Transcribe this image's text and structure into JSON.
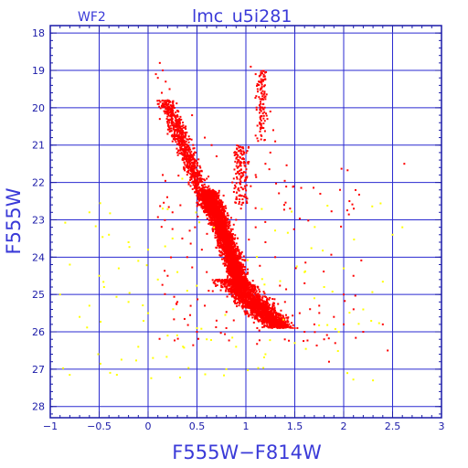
{
  "chart_data": {
    "type": "scatter",
    "title": "lmc_u5i281",
    "panel_label": "WF2",
    "xlabel": "F555W−F814W",
    "ylabel": "F555W",
    "xlim": [
      -1,
      3
    ],
    "ylim": [
      28.3,
      17.8
    ],
    "y_inverted": true,
    "x_ticks": [
      -1,
      -0.5,
      0,
      0.5,
      1,
      1.5,
      2,
      2.5,
      3
    ],
    "x_tick_labels": [
      "−1",
      "−0.5",
      "0",
      "0.5",
      "1",
      "1.5",
      "2",
      "2.5",
      "3"
    ],
    "y_ticks": [
      18,
      19,
      20,
      21,
      22,
      23,
      24,
      25,
      26,
      27,
      28
    ],
    "y_tick_labels": [
      "18",
      "19",
      "20",
      "21",
      "22",
      "23",
      "24",
      "25",
      "26",
      "27",
      "28"
    ],
    "grid": true,
    "legend": "none",
    "series": [
      {
        "color": "#ff0000",
        "points": [
          [
            0.12,
            18.8
          ],
          [
            0.15,
            19.0
          ],
          [
            0.1,
            19.2
          ],
          [
            0.18,
            19.3
          ],
          [
            0.08,
            19.1
          ],
          [
            0.22,
            19.5
          ],
          [
            0.14,
            19.6
          ],
          [
            0.2,
            19.8
          ],
          [
            0.1,
            19.9
          ],
          [
            0.25,
            20.0
          ],
          [
            0.18,
            20.1
          ],
          [
            0.3,
            20.2
          ],
          [
            0.12,
            20.3
          ],
          [
            0.22,
            20.4
          ],
          [
            0.35,
            20.5
          ],
          [
            0.28,
            20.6
          ],
          [
            0.2,
            20.7
          ],
          [
            0.38,
            20.8
          ],
          [
            0.25,
            20.9
          ],
          [
            0.32,
            21.0
          ],
          [
            0.42,
            21.1
          ],
          [
            0.3,
            21.2
          ],
          [
            0.45,
            21.3
          ],
          [
            0.36,
            21.4
          ],
          [
            0.5,
            21.5
          ],
          [
            0.4,
            21.6
          ],
          [
            0.55,
            21.7
          ],
          [
            0.48,
            21.8
          ],
          [
            0.6,
            21.9
          ],
          [
            0.52,
            22.0
          ],
          [
            0.62,
            22.1
          ],
          [
            0.56,
            22.2
          ],
          [
            0.68,
            22.3
          ],
          [
            0.6,
            22.4
          ],
          [
            0.7,
            22.5
          ],
          [
            0.65,
            22.6
          ],
          [
            0.72,
            22.7
          ],
          [
            0.68,
            22.8
          ],
          [
            0.75,
            22.9
          ],
          [
            0.7,
            23.0
          ],
          [
            0.78,
            23.1
          ],
          [
            0.72,
            23.2
          ],
          [
            0.8,
            23.3
          ],
          [
            0.75,
            23.4
          ],
          [
            0.82,
            23.5
          ],
          [
            0.78,
            23.6
          ],
          [
            0.85,
            23.7
          ],
          [
            0.8,
            23.8
          ],
          [
            0.88,
            23.9
          ],
          [
            0.82,
            24.0
          ],
          [
            0.9,
            24.1
          ],
          [
            0.85,
            24.2
          ],
          [
            0.92,
            24.3
          ],
          [
            0.88,
            24.4
          ],
          [
            0.95,
            24.5
          ],
          [
            0.9,
            24.6
          ],
          [
            1.0,
            24.7
          ],
          [
            0.95,
            24.8
          ],
          [
            1.05,
            24.9
          ],
          [
            1.0,
            25.0
          ],
          [
            1.1,
            25.1
          ],
          [
            1.05,
            25.2
          ],
          [
            1.15,
            25.3
          ],
          [
            1.2,
            25.4
          ],
          [
            1.25,
            25.5
          ],
          [
            1.3,
            25.6
          ],
          [
            1.35,
            25.7
          ],
          [
            1.4,
            25.8
          ],
          [
            1.5,
            25.9
          ],
          [
            1.6,
            26.0
          ],
          [
            1.7,
            25.8
          ],
          [
            1.8,
            26.2
          ],
          [
            1.05,
            18.9
          ],
          [
            1.1,
            19.1
          ],
          [
            1.15,
            19.3
          ],
          [
            1.12,
            19.5
          ],
          [
            1.2,
            19.7
          ],
          [
            1.18,
            19.9
          ],
          [
            1.25,
            20.1
          ],
          [
            1.22,
            20.3
          ],
          [
            1.28,
            20.6
          ],
          [
            1.3,
            20.9
          ],
          [
            1.25,
            21.2
          ],
          [
            1.2,
            21.5
          ],
          [
            1.1,
            21.8
          ],
          [
            1.05,
            22.1
          ],
          [
            1.0,
            22.4
          ],
          [
            0.95,
            22.7
          ],
          [
            0.9,
            23.0
          ],
          [
            0.85,
            23.3
          ],
          [
            0.65,
            21.0
          ],
          [
            0.7,
            21.3
          ],
          [
            0.58,
            20.8
          ],
          [
            0.45,
            20.2
          ],
          [
            0.52,
            22.6
          ],
          [
            0.48,
            23.2
          ],
          [
            0.55,
            23.8
          ],
          [
            0.6,
            24.4
          ],
          [
            0.62,
            24.9
          ],
          [
            0.58,
            25.3
          ],
          [
            0.7,
            25.7
          ],
          [
            0.8,
            25.9
          ],
          [
            1.4,
            25.2
          ],
          [
            1.55,
            25.5
          ],
          [
            1.75,
            25.3
          ],
          [
            1.9,
            25.6
          ],
          [
            2.0,
            25.0
          ],
          [
            2.2,
            26.0
          ],
          [
            2.45,
            26.5
          ],
          [
            2.62,
            21.5
          ],
          [
            2.0,
            25.8
          ],
          [
            1.85,
            26.8
          ],
          [
            2.4,
            25.8
          ],
          [
            2.1,
            24.5
          ],
          [
            1.6,
            24.7
          ],
          [
            1.3,
            24.0
          ],
          [
            1.2,
            23.6
          ],
          [
            1.1,
            23.2
          ],
          [
            0.3,
            25.2
          ],
          [
            0.4,
            24.0
          ],
          [
            0.2,
            24.5
          ],
          [
            0.35,
            23.5
          ],
          [
            0.25,
            22.8
          ],
          [
            0.45,
            22.0
          ],
          [
            0.15,
            21.8
          ],
          [
            0.5,
            26.0
          ]
        ]
      },
      {
        "color": "#ffff00",
        "points": [
          [
            -0.6,
            22.8
          ],
          [
            -0.4,
            23.4
          ],
          [
            -0.2,
            23.6
          ],
          [
            0.0,
            23.8
          ],
          [
            0.25,
            23.5
          ],
          [
            -0.8,
            24.2
          ],
          [
            -0.5,
            24.5
          ],
          [
            -0.3,
            24.3
          ],
          [
            -0.1,
            24.1
          ],
          [
            0.1,
            24.6
          ],
          [
            0.3,
            24.4
          ],
          [
            -0.9,
            25.0
          ],
          [
            -0.6,
            25.3
          ],
          [
            0.0,
            25.5
          ],
          [
            0.2,
            26.1
          ],
          [
            -0.1,
            26.4
          ],
          [
            0.5,
            25.9
          ],
          [
            0.6,
            26.2
          ],
          [
            -0.2,
            25.2
          ],
          [
            -0.7,
            25.6
          ],
          [
            0.4,
            24.9
          ],
          [
            1.6,
            24.4
          ],
          [
            1.8,
            24.8
          ],
          [
            2.0,
            24.3
          ],
          [
            2.3,
            27.3
          ],
          [
            2.5,
            23.4
          ],
          [
            2.6,
            23.2
          ],
          [
            1.5,
            26.3
          ],
          [
            1.2,
            26.6
          ],
          [
            0.8,
            27.0
          ],
          [
            2.2,
            25.4
          ],
          [
            1.7,
            25.1
          ],
          [
            0.15,
            22.7
          ],
          [
            0.35,
            21.9
          ],
          [
            0.55,
            22.4
          ],
          [
            -0.45,
            24.8
          ],
          [
            0.05,
            26.7
          ],
          [
            1.95,
            26.0
          ],
          [
            1.35,
            25.6
          ],
          [
            0.9,
            26.4
          ]
        ]
      }
    ]
  }
}
